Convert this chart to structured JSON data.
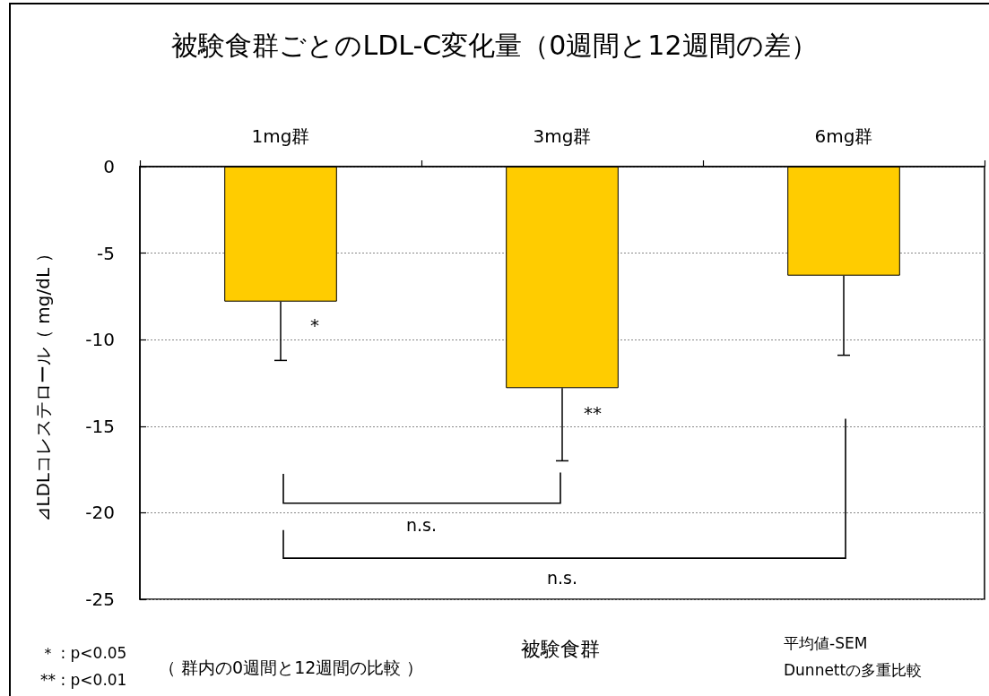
{
  "chart_data": {
    "type": "bar",
    "title": "被験食群ごとのLDL-C変化量（0週間と12週間の差）",
    "xlabel": "被験食群",
    "ylabel": "⊿LDLコレステロール（ mg/dL ）",
    "categories": [
      "1mg群",
      "3mg群",
      "6mg群"
    ],
    "values": [
      -7.8,
      -12.8,
      -6.3
    ],
    "errors": [
      [
        -11.2,
        -7.8
      ],
      [
        -17.0,
        -12.8
      ],
      [
        -10.9,
        -6.3
      ]
    ],
    "color": "#ffcc00",
    "ylim": [
      -25,
      0
    ],
    "yticks": [
      -25,
      -20,
      -15,
      -10,
      -5,
      0
    ],
    "grid": "y",
    "annotations": [
      "*",
      "**",
      "n.s.",
      "n.s.",
      "＊ : p<0.05",
      "** : p<0.01",
      "（ 群内の0週間と12週間の比較 ）",
      "平均値-SEM",
      "Dunnettの多重比較"
    ]
  }
}
